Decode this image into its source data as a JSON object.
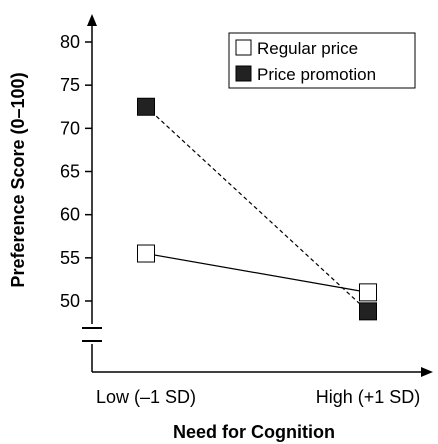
{
  "chart_data": {
    "type": "line",
    "title": "",
    "xlabel": "Need for Cognition",
    "ylabel": "Preference Score (0–100)",
    "categories": [
      "Low (–1 SD)",
      "High (+1 SD)"
    ],
    "y_ticks": [
      50,
      55,
      60,
      65,
      70,
      75,
      80
    ],
    "ylim": [
      45,
      82
    ],
    "y_axis_break": true,
    "grid": false,
    "legend_position": "top-right",
    "series": [
      {
        "name": "Regular price",
        "values": [
          55.5,
          51.0
        ],
        "marker": "open-square",
        "line_style": "solid",
        "marker_fill": "#ffffff"
      },
      {
        "name": "Price promotion",
        "values": [
          72.5,
          48.8
        ],
        "marker": "filled-square",
        "line_style": "dashed",
        "marker_fill": "#222222"
      }
    ]
  }
}
